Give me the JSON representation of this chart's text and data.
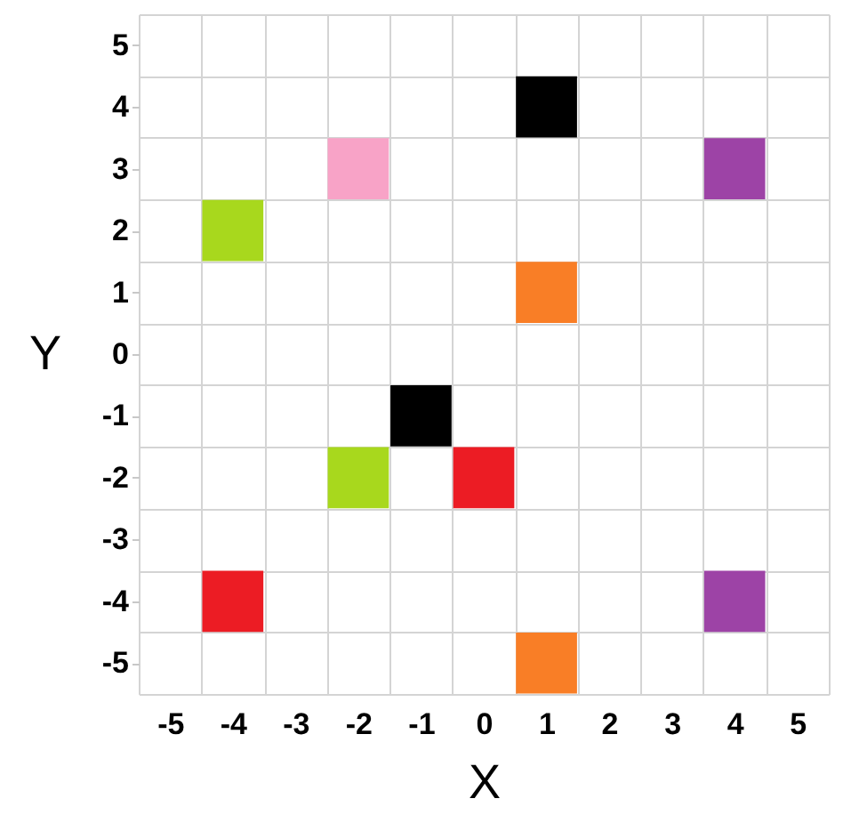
{
  "chart_data": {
    "type": "scatter",
    "xlabel": "X",
    "ylabel": "Y",
    "x": [
      -4,
      -2,
      1,
      4,
      1,
      -1,
      -2,
      0,
      -4,
      4,
      1
    ],
    "values": [
      2,
      3,
      4,
      3,
      1,
      -1,
      -2,
      -2,
      -4,
      -4,
      -5
    ],
    "colors": [
      "#a8d81d",
      "#f8a3c7",
      "#000000",
      "#9d43a6",
      "#f97e26",
      "#000000",
      "#a8d81d",
      "#ec1c24",
      "#ec1c24",
      "#9d43a6",
      "#f97e26"
    ],
    "marker": "square",
    "grid": true,
    "xlim": [
      -5.5,
      5.5
    ],
    "ylim": [
      -5.5,
      5.5
    ],
    "xticks": [
      {
        "value": -5.5,
        "label": null
      },
      -5,
      {
        "value": -4.5,
        "label": null
      },
      -4,
      {
        "value": -3.5,
        "label": null
      },
      -3,
      {
        "value": -2.5,
        "label": null
      },
      -2,
      {
        "value": -1.5,
        "label": null
      },
      -1,
      {
        "value": -0.5,
        "label": null
      },
      0,
      {
        "value": 0.5,
        "label": null
      },
      1,
      {
        "value": 1.5,
        "label": null
      },
      2,
      {
        "value": 2.5,
        "label": null
      },
      3,
      {
        "value": 3.5,
        "label": null
      },
      4,
      {
        "value": 4.5,
        "label": null
      },
      5,
      {
        "value": 5.5,
        "label": null
      }
    ],
    "yticks": [
      {
        "value": -5.5,
        "label": null
      },
      -5,
      {
        "value": -4.5,
        "label": null
      },
      -4,
      {
        "value": -3.5,
        "label": null
      },
      -3,
      {
        "value": -2.5,
        "label": null
      },
      -2,
      {
        "value": -1.5,
        "label": null
      },
      -1,
      {
        "value": -0.5,
        "label": null
      },
      0,
      {
        "value": 0.5,
        "label": null
      },
      1,
      {
        "value": 1.5,
        "label": null
      },
      2,
      {
        "value": 2.5,
        "label": null
      },
      3,
      {
        "value": 3.5,
        "label": null
      },
      4,
      {
        "value": 4.5,
        "label": null
      },
      5,
      {
        "value": 5.5,
        "label": null
      }
    ]
  }
}
